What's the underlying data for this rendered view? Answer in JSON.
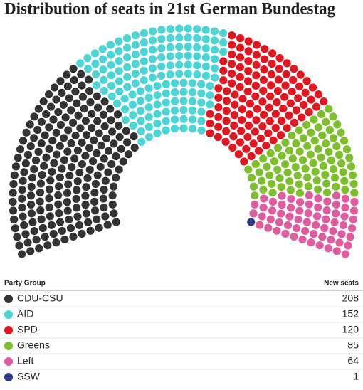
{
  "chart_data": {
    "type": "parliament",
    "title": "Distribution of seats in 21st German Bundestag",
    "table_headers": [
      "Party Group",
      "New seats"
    ],
    "categories": [
      "CDU-CSU",
      "AfD",
      "SPD",
      "Greens",
      "Left",
      "SSW"
    ],
    "values": [
      208,
      152,
      120,
      85,
      64,
      1
    ],
    "colors": [
      "#333333",
      "#4dd4d4",
      "#e3161f",
      "#7dbf2c",
      "#e05c9f",
      "#2b3a8c"
    ]
  }
}
